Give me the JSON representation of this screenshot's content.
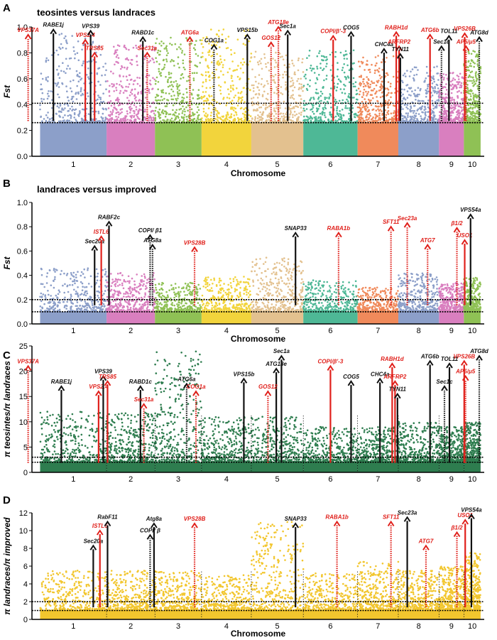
{
  "chart_data": [
    {
      "id": "A",
      "type": "scatter",
      "subtype": "manhattan",
      "panel_letter": "A",
      "title": "teosintes versus landraces",
      "xlabel": "Chromosome",
      "ylabel": "Fst",
      "ylim": [
        0,
        1.0
      ],
      "yticks": [
        0.0,
        0.2,
        0.4,
        0.6,
        0.8,
        1.0
      ],
      "ytick_labels": [
        "0.0",
        "0.2",
        "0.4",
        "0.6",
        "0.8",
        "1.0"
      ],
      "categories": [
        "1",
        "2",
        "3",
        "4",
        "5",
        "6",
        "7",
        "8",
        "9",
        "10"
      ],
      "chromosome_colors": [
        "#8c9fc9",
        "#d97fbf",
        "#8fc155",
        "#f2d43c",
        "#e3c18f",
        "#4eb896",
        "#f08a5b",
        "#8c9fc9",
        "#d97fbf",
        "#8fc155"
      ],
      "point_peaks": [
        0.95,
        0.86,
        0.92,
        1.0,
        0.82,
        0.82,
        0.78,
        0.7,
        0.65,
        0.82
      ],
      "bar_top": 0.26,
      "thresholds": [
        0.26,
        0.41
      ],
      "annotations": [
        {
          "label": "VPS37A",
          "x": 0.32,
          "y": 0.94,
          "color": "red",
          "style": "dotted"
        },
        {
          "label": "RABE1j",
          "x": 0.7,
          "y": 0.98,
          "color": "black",
          "style": "solid"
        },
        {
          "label": "VPS2.4",
          "x": 1.18,
          "y": 0.9,
          "color": "red",
          "style": "solid"
        },
        {
          "label": "VPS39",
          "x": 1.26,
          "y": 0.97,
          "color": "black",
          "style": "solid"
        },
        {
          "label": "TRS85",
          "x": 1.32,
          "y": 0.8,
          "color": "red",
          "style": "solid"
        },
        {
          "label": "RABD1c",
          "x": 2.25,
          "y": 0.92,
          "color": "black",
          "style": "solid"
        },
        {
          "label": "Sec31a",
          "x": 2.34,
          "y": 0.8,
          "color": "red",
          "style": "dotted"
        },
        {
          "label": "ATG6a",
          "x": 3.25,
          "y": 0.92,
          "color": "red",
          "style": "dotted"
        },
        {
          "label": "COG1a",
          "x": 3.75,
          "y": 0.86,
          "color": "black",
          "style": "dotted"
        },
        {
          "label": "VPS15b",
          "x": 4.42,
          "y": 0.94,
          "color": "black",
          "style": "solid"
        },
        {
          "label": "ATG18e",
          "x": 5.02,
          "y": 1.0,
          "color": "red",
          "style": "dotted"
        },
        {
          "label": "GOS12",
          "x": 4.88,
          "y": 0.88,
          "color": "red",
          "style": "dotted"
        },
        {
          "label": "Sec1a",
          "x": 5.2,
          "y": 0.97,
          "color": "black",
          "style": "solid"
        },
        {
          "label": "COPI/β'-3",
          "x": 6.05,
          "y": 0.93,
          "color": "red",
          "style": "solid"
        },
        {
          "label": "COG5",
          "x": 6.38,
          "y": 0.96,
          "color": "black",
          "style": "solid"
        },
        {
          "label": "CHC4a",
          "x": 7.15,
          "y": 0.83,
          "color": "black",
          "style": "solid"
        },
        {
          "label": "RABH1d",
          "x": 7.45,
          "y": 0.96,
          "color": "red",
          "style": "solid"
        },
        {
          "label": "ARFRP2",
          "x": 7.52,
          "y": 0.85,
          "color": "red",
          "style": "solid"
        },
        {
          "label": "TYN11",
          "x": 7.55,
          "y": 0.79,
          "color": "black",
          "style": "solid"
        },
        {
          "label": "ATG6b",
          "x": 8.28,
          "y": 0.94,
          "color": "red",
          "style": "solid"
        },
        {
          "label": "Sec1c",
          "x": 8.6,
          "y": 0.85,
          "color": "black",
          "style": "dotted"
        },
        {
          "label": "TOL11",
          "x": 8.9,
          "y": 0.93,
          "color": "black",
          "style": "solid"
        },
        {
          "label": "VPS26B",
          "x": 9.55,
          "y": 0.95,
          "color": "red",
          "style": "solid"
        },
        {
          "label": "AP5/μ5",
          "x": 9.63,
          "y": 0.85,
          "color": "red",
          "style": "dotted"
        },
        {
          "label": "ATG8d",
          "x": 10.42,
          "y": 0.92,
          "color": "black",
          "style": "dotted"
        }
      ]
    },
    {
      "id": "B",
      "type": "scatter",
      "subtype": "manhattan",
      "panel_letter": "B",
      "title": "landraces versus improved",
      "xlabel": "Chromosome",
      "ylabel": "Fst",
      "ylim": [
        0,
        1.0
      ],
      "yticks": [
        0.0,
        0.2,
        0.4,
        0.6,
        0.8,
        1.0
      ],
      "ytick_labels": [
        "0.0",
        "0.2",
        "0.4",
        "0.6",
        "0.8",
        "1.0"
      ],
      "categories": [
        "1",
        "2",
        "3",
        "4",
        "5",
        "6",
        "7",
        "8",
        "9",
        "10"
      ],
      "chromosome_colors": [
        "#8c9fc9",
        "#d97fbf",
        "#8fc155",
        "#f2d43c",
        "#e3c18f",
        "#4eb896",
        "#f08a5b",
        "#8c9fc9",
        "#d97fbf",
        "#8fc155"
      ],
      "point_peaks": [
        0.46,
        0.42,
        0.34,
        0.39,
        0.55,
        0.36,
        0.3,
        0.42,
        0.34,
        0.38
      ],
      "bar_top": 0.1,
      "thresholds": [
        0.1,
        0.2
      ],
      "annotations": [
        {
          "label": "Sec20a",
          "x": 1.32,
          "y": 0.64,
          "color": "black",
          "style": "solid"
        },
        {
          "label": "ISTL6",
          "x": 1.42,
          "y": 0.72,
          "color": "red",
          "style": "solid"
        },
        {
          "label": "RABF2c",
          "x": 1.55,
          "y": 0.84,
          "color": "black",
          "style": "solid"
        },
        {
          "label": "COPI/ β1",
          "x": 2.4,
          "y": 0.73,
          "color": "black",
          "style": "dotted"
        },
        {
          "label": "ATG8a",
          "x": 2.45,
          "y": 0.65,
          "color": "black",
          "style": "dotted"
        },
        {
          "label": "VPS28B",
          "x": 3.35,
          "y": 0.63,
          "color": "red",
          "style": "dotted"
        },
        {
          "label": "SNAP33",
          "x": 5.35,
          "y": 0.75,
          "color": "black",
          "style": "solid"
        },
        {
          "label": "RABA1b",
          "x": 6.15,
          "y": 0.75,
          "color": "red",
          "style": "dotted"
        },
        {
          "label": "SFT11",
          "x": 7.32,
          "y": 0.8,
          "color": "red",
          "style": "dotted"
        },
        {
          "label": "Sec23a",
          "x": 7.72,
          "y": 0.83,
          "color": "red",
          "style": "dotted"
        },
        {
          "label": "ATG7",
          "x": 8.22,
          "y": 0.65,
          "color": "red",
          "style": "dotted"
        },
        {
          "label": "β1/2",
          "x": 9.22,
          "y": 0.79,
          "color": "red",
          "style": "dotted"
        },
        {
          "label": "USO1",
          "x": 9.55,
          "y": 0.69,
          "color": "red",
          "style": "solid"
        },
        {
          "label": "VPS54a",
          "x": 9.9,
          "y": 0.9,
          "color": "black",
          "style": "solid"
        }
      ]
    },
    {
      "id": "C",
      "type": "scatter",
      "subtype": "manhattan",
      "panel_letter": "C",
      "title": "",
      "xlabel": "",
      "ylabel": "π teosintes/π landraces",
      "ylim": [
        0,
        25
      ],
      "yticks": [
        0,
        5,
        10,
        15,
        20,
        25
      ],
      "ytick_labels": [
        "0",
        "5",
        "10",
        "15",
        "20",
        "25"
      ],
      "categories": [
        "1",
        "2",
        "3",
        "4",
        "5",
        "6",
        "7",
        "8",
        "9",
        "10"
      ],
      "point_color": "#2e7d4f",
      "point_peaks": [
        12,
        12,
        24,
        11,
        11,
        9,
        9,
        10,
        9,
        10
      ],
      "bar_top": 2.0,
      "thresholds": [
        2.0,
        3.0
      ],
      "annotations": [
        {
          "label": "VPS37A",
          "x": 0.32,
          "y": 21,
          "color": "red",
          "style": "dotted"
        },
        {
          "label": "RABE1j",
          "x": 0.82,
          "y": 17,
          "color": "black",
          "style": "solid"
        },
        {
          "label": "VPS2.4",
          "x": 1.38,
          "y": 16,
          "color": "red",
          "style": "solid"
        },
        {
          "label": "VPS39",
          "x": 1.45,
          "y": 19,
          "color": "black",
          "style": "solid"
        },
        {
          "label": "TRS85",
          "x": 1.52,
          "y": 18,
          "color": "red",
          "style": "solid"
        },
        {
          "label": "RABD1c",
          "x": 2.2,
          "y": 17,
          "color": "black",
          "style": "solid"
        },
        {
          "label": "Sec31a",
          "x": 2.27,
          "y": 13.5,
          "color": "red",
          "style": "dotted"
        },
        {
          "label": "ATG6a",
          "x": 3.18,
          "y": 17.5,
          "color": "black",
          "style": "dotted"
        },
        {
          "label": "COG1a",
          "x": 3.38,
          "y": 16,
          "color": "red",
          "style": "dotted"
        },
        {
          "label": "VPS15b",
          "x": 4.35,
          "y": 18.5,
          "color": "black",
          "style": "solid"
        },
        {
          "label": "ATG18e",
          "x": 4.98,
          "y": 20.5,
          "color": "black",
          "style": "solid"
        },
        {
          "label": "GOS12",
          "x": 4.82,
          "y": 16,
          "color": "red",
          "style": "dotted"
        },
        {
          "label": "Sec1a",
          "x": 5.08,
          "y": 23,
          "color": "black",
          "style": "solid"
        },
        {
          "label": "COPI/β'-3",
          "x": 6.0,
          "y": 21,
          "color": "red",
          "style": "solid"
        },
        {
          "label": "COG5",
          "x": 6.38,
          "y": 18,
          "color": "black",
          "style": "solid"
        },
        {
          "label": "CHC4a",
          "x": 7.05,
          "y": 18.5,
          "color": "black",
          "style": "solid"
        },
        {
          "label": "RABH1d",
          "x": 7.35,
          "y": 21.5,
          "color": "red",
          "style": "solid"
        },
        {
          "label": "ARFRP2",
          "x": 7.42,
          "y": 18,
          "color": "red",
          "style": "solid"
        },
        {
          "label": "TYN11",
          "x": 7.48,
          "y": 15.5,
          "color": "black",
          "style": "solid"
        },
        {
          "label": "ATG6b",
          "x": 8.28,
          "y": 22,
          "color": "black",
          "style": "solid"
        },
        {
          "label": "Sec1c",
          "x": 8.72,
          "y": 17,
          "color": "black",
          "style": "dotted"
        },
        {
          "label": "TOL11",
          "x": 8.92,
          "y": 21.5,
          "color": "black",
          "style": "solid"
        },
        {
          "label": "VPS26B",
          "x": 9.52,
          "y": 22,
          "color": "red",
          "style": "solid"
        },
        {
          "label": "AP5/μ5",
          "x": 9.6,
          "y": 19,
          "color": "red",
          "style": "dotted"
        },
        {
          "label": "ATG8d",
          "x": 10.42,
          "y": 23,
          "color": "black",
          "style": "dotted"
        }
      ]
    },
    {
      "id": "D",
      "type": "scatter",
      "subtype": "manhattan",
      "panel_letter": "D",
      "title": "",
      "xlabel": "Chromosome",
      "ylabel": "π landraces/π improved",
      "ylim": [
        0,
        12
      ],
      "yticks": [
        0,
        2,
        4,
        6,
        8,
        10,
        12
      ],
      "ytick_labels": [
        "0",
        "2",
        "4",
        "6",
        "8",
        "10",
        "12"
      ],
      "categories": [
        "1",
        "2",
        "3",
        "4",
        "5",
        "6",
        "7",
        "8",
        "9",
        "10"
      ],
      "point_color": "#f2c62e",
      "point_peaks": [
        5.5,
        5.5,
        5.5,
        5.0,
        11.0,
        5.2,
        6.5,
        5.5,
        6.0,
        7.5
      ],
      "bar_top": 1.0,
      "thresholds": [
        1.0,
        2.0
      ],
      "annotations": [
        {
          "label": "Sec20a",
          "x": 1.3,
          "y": 8.3,
          "color": "black",
          "style": "solid"
        },
        {
          "label": "ISTL6",
          "x": 1.4,
          "y": 10.0,
          "color": "red",
          "style": "solid"
        },
        {
          "label": "RabF11",
          "x": 1.52,
          "y": 11.0,
          "color": "black",
          "style": "solid"
        },
        {
          "label": "COPI/ β",
          "x": 2.4,
          "y": 9.5,
          "color": "black",
          "style": "dotted"
        },
        {
          "label": "Atg8a",
          "x": 2.48,
          "y": 10.8,
          "color": "black",
          "style": "solid"
        },
        {
          "label": "VPS28B",
          "x": 3.35,
          "y": 10.8,
          "color": "red",
          "style": "dotted"
        },
        {
          "label": "SNAP33",
          "x": 5.35,
          "y": 10.8,
          "color": "black",
          "style": "solid"
        },
        {
          "label": "RABA1b",
          "x": 6.12,
          "y": 11.0,
          "color": "red",
          "style": "dotted"
        },
        {
          "label": "SFT11",
          "x": 7.32,
          "y": 11.0,
          "color": "red",
          "style": "dotted"
        },
        {
          "label": "Sec23a",
          "x": 7.72,
          "y": 11.5,
          "color": "black",
          "style": "solid"
        },
        {
          "label": "ATG7",
          "x": 8.18,
          "y": 8.3,
          "color": "red",
          "style": "dotted"
        },
        {
          "label": "β1/2",
          "x": 9.22,
          "y": 9.8,
          "color": "red",
          "style": "dotted"
        },
        {
          "label": "USO1",
          "x": 9.58,
          "y": 11.2,
          "color": "red",
          "style": "solid"
        },
        {
          "label": "VPS54a",
          "x": 9.95,
          "y": 11.8,
          "color": "black",
          "style": "solid"
        }
      ]
    }
  ]
}
